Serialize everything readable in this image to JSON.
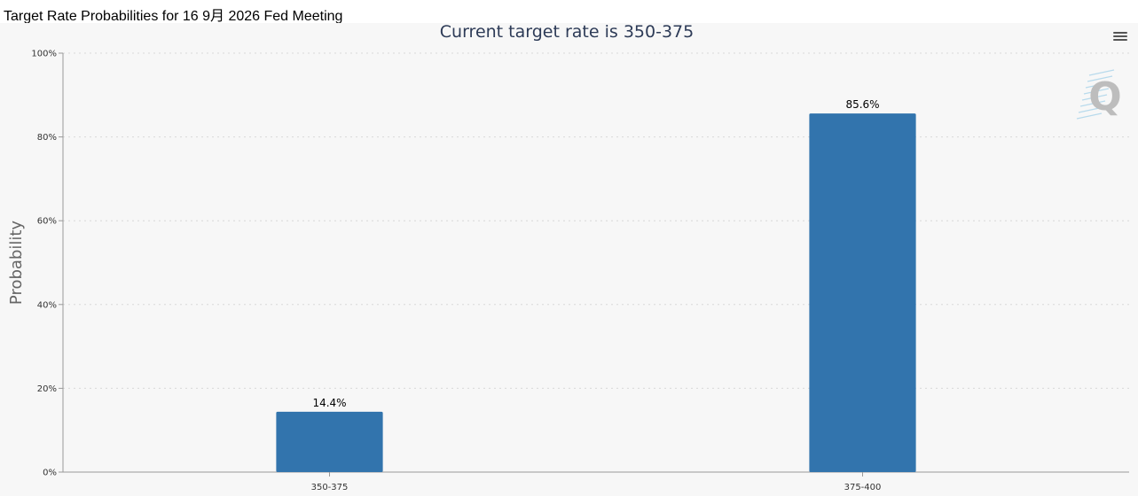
{
  "header": {
    "title": "Target Rate Probabilities for 16 9月 2026 Fed Meeting"
  },
  "menu": {
    "icon": "hamburger-menu-icon"
  },
  "watermark": {
    "icon": "q-logo-icon",
    "letter": "Q"
  },
  "colors": {
    "bar": "#3274ad",
    "panel": "#f7f7f7",
    "title": "#2d3b57",
    "grid": "#d8d8d8"
  },
  "chart_data": {
    "type": "bar",
    "title": "Current target rate is 350-375",
    "xlabel": "",
    "ylabel": "Probability",
    "categories": [
      "350-375",
      "375-400"
    ],
    "values": [
      14.4,
      85.6
    ],
    "data_labels": [
      "14.4%",
      "85.6%"
    ],
    "ylim": [
      0,
      100
    ],
    "yticks": [
      0,
      20,
      40,
      60,
      80,
      100
    ],
    "ytick_labels": [
      "0%",
      "20%",
      "40%",
      "60%",
      "80%",
      "100%"
    ],
    "grid": true,
    "legend": "none"
  }
}
